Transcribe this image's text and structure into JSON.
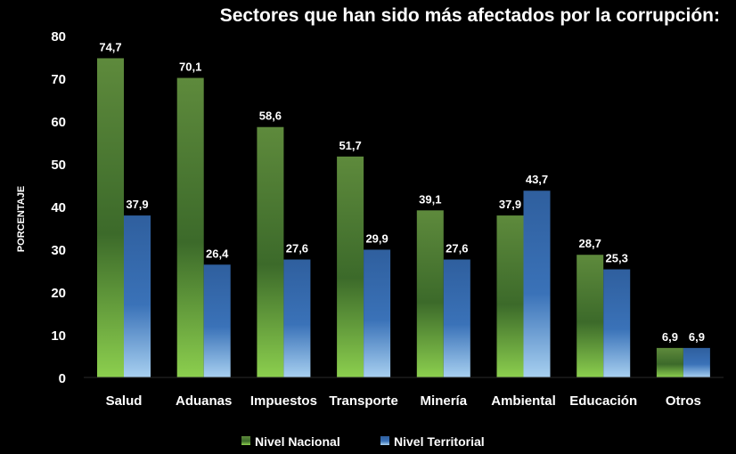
{
  "chart_data": {
    "type": "bar",
    "title": "Sectores que han sido más afectados por la corrupción:",
    "xlabel": "",
    "ylabel": "PORCENTAJE",
    "ylim": [
      0,
      80
    ],
    "yticks": [
      "0",
      "10",
      "20",
      "30",
      "40",
      "50",
      "60",
      "70",
      "80"
    ],
    "grid": false,
    "legend_position": "bottom",
    "categories": [
      "Salud",
      "Aduanas",
      "Impuestos",
      "Transporte",
      "Minería",
      "Ambiental",
      "Educación",
      "Otros"
    ],
    "series": [
      {
        "name": "Nivel Nacional",
        "color": "#4e8a2e",
        "values": [
          74.7,
          70.1,
          58.6,
          51.7,
          39.1,
          37.9,
          28.7,
          6.9
        ],
        "labels": [
          "74,7",
          "70,1",
          "58,6",
          "51,7",
          "39,1",
          "37,9",
          "28,7",
          "6,9"
        ]
      },
      {
        "name": "Nivel Territorial",
        "color": "#2a5ea8",
        "values": [
          37.9,
          26.4,
          27.6,
          29.9,
          27.6,
          43.7,
          25.3,
          6.9
        ],
        "labels": [
          "37,9",
          "26,4",
          "27,6",
          "29,9",
          "27,6",
          "43,7",
          "25,3",
          "6,9"
        ]
      }
    ]
  }
}
